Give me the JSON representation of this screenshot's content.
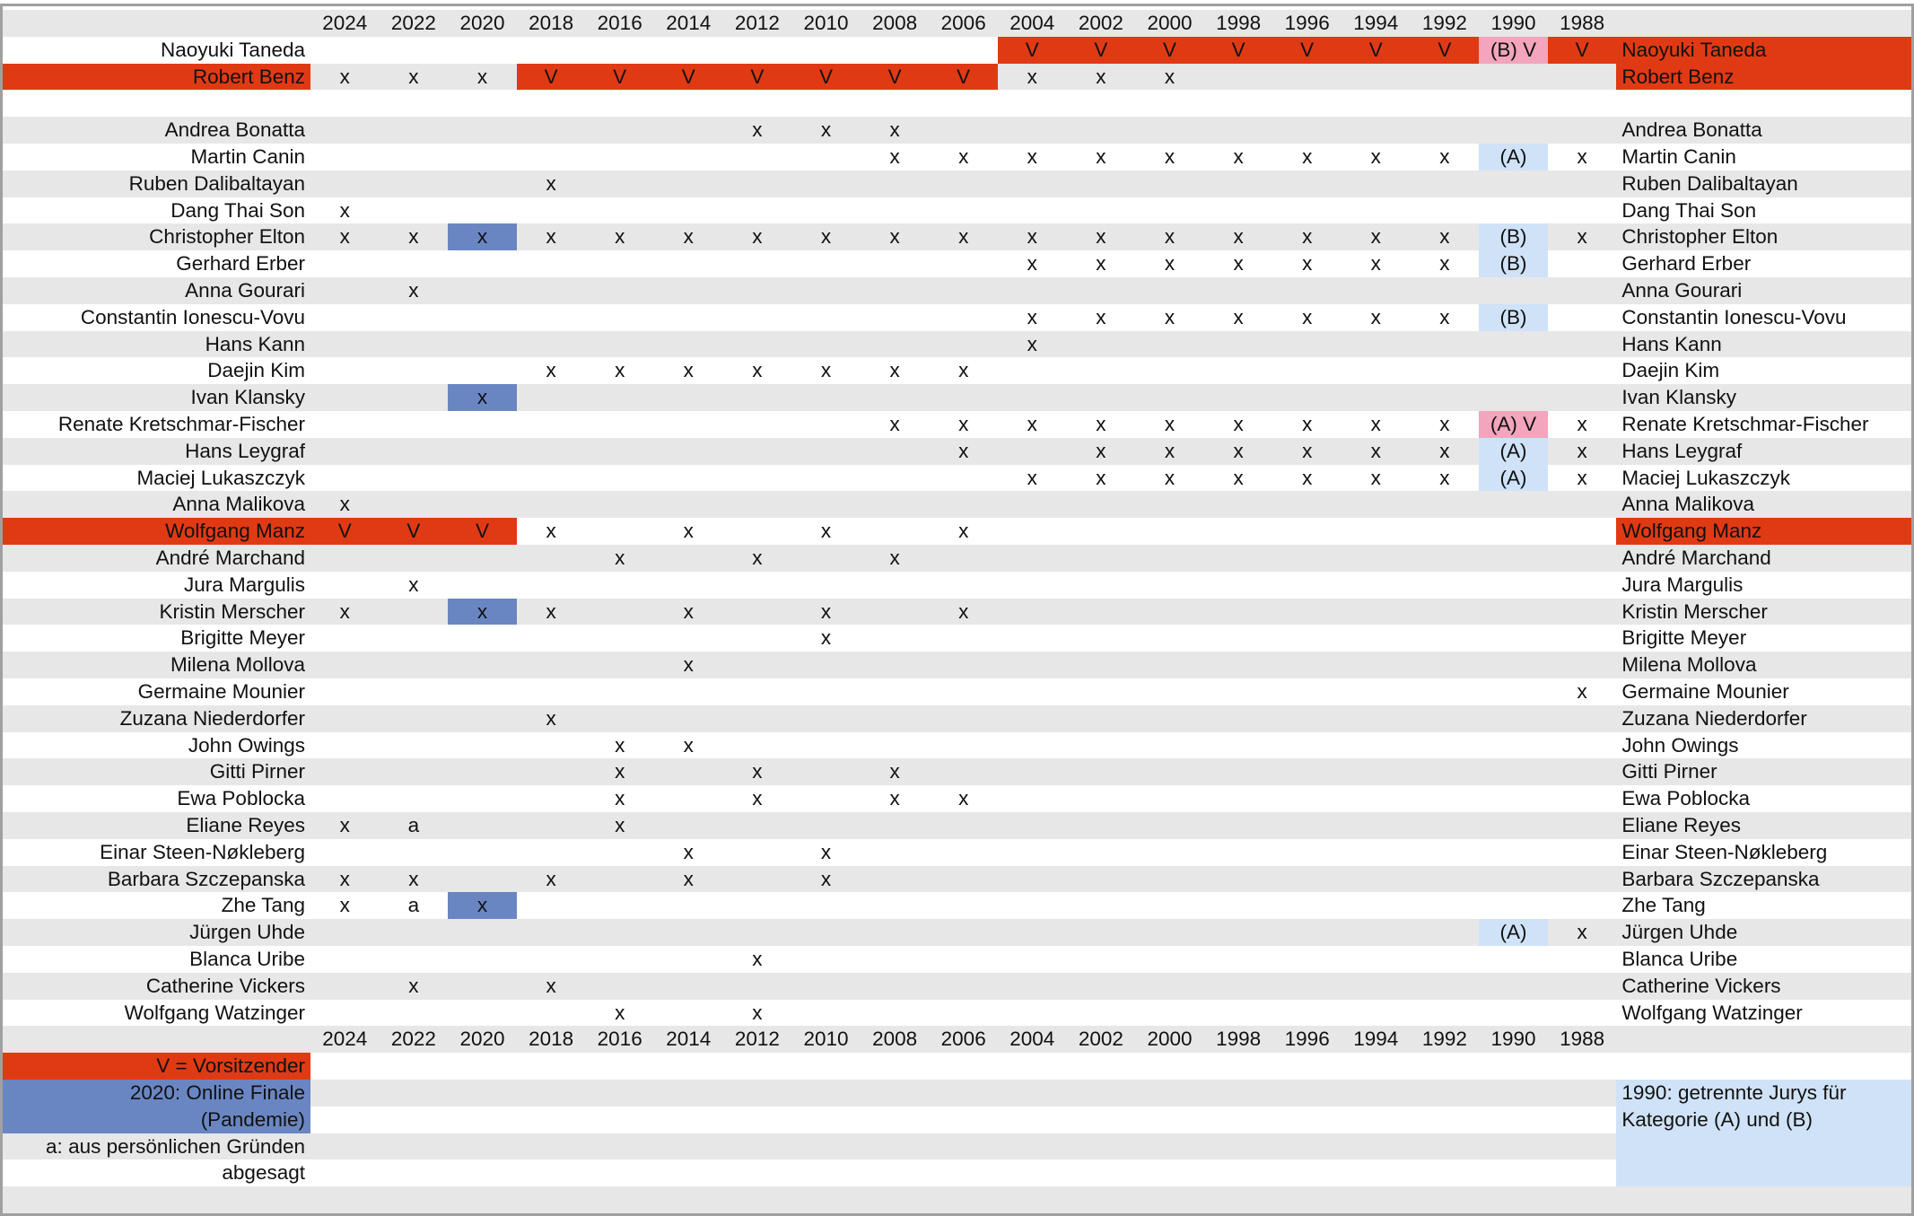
{
  "years": [
    "2024",
    "2022",
    "2020",
    "2018",
    "2016",
    "2014",
    "2012",
    "2010",
    "2008",
    "2006",
    "2004",
    "2002",
    "2000",
    "1998",
    "1996",
    "1994",
    "1992",
    "1990",
    "1988"
  ],
  "chairs": [
    {
      "name": "Naoyuki Taneda",
      "right_name_color": "#e03a14",
      "cells": [
        null,
        null,
        null,
        null,
        null,
        null,
        null,
        null,
        null,
        null,
        "V",
        "V",
        "V",
        "V",
        "V",
        "V",
        "V",
        "(B) V",
        "V"
      ],
      "fills": {
        "10": "#e03a14",
        "11": "#e03a14",
        "12": "#e03a14",
        "13": "#e03a14",
        "14": "#e03a14",
        "15": "#e03a14",
        "16": "#e03a14",
        "17": "#f2a5bd",
        "18": "#e03a14"
      }
    },
    {
      "name": "Robert Benz",
      "name_color": "#e03a14",
      "right_name_color": "#e03a14",
      "cells": [
        "x",
        "x",
        "x",
        "V",
        "V",
        "V",
        "V",
        "V",
        "V",
        "V",
        "x",
        "x",
        "x",
        null,
        null,
        null,
        null,
        null,
        null
      ],
      "fills": {
        "3": "#e03a14",
        "4": "#e03a14",
        "5": "#e03a14",
        "6": "#e03a14",
        "7": "#e03a14",
        "8": "#e03a14",
        "9": "#e03a14"
      }
    }
  ],
  "members": [
    {
      "name": "Andrea Bonatta",
      "cells": [
        null,
        null,
        null,
        null,
        null,
        null,
        "x",
        "x",
        "x",
        null,
        null,
        null,
        null,
        null,
        null,
        null,
        null,
        null,
        null
      ]
    },
    {
      "name": "Martin Canin",
      "cells": [
        null,
        null,
        null,
        null,
        null,
        null,
        null,
        null,
        "x",
        "x",
        "x",
        "x",
        "x",
        "x",
        "x",
        "x",
        "x",
        "(A)",
        "x"
      ],
      "fills": {
        "17": "#cfe2f7"
      }
    },
    {
      "name": "Ruben Dalibaltayan",
      "cells": [
        null,
        null,
        null,
        "x",
        null,
        null,
        null,
        null,
        null,
        null,
        null,
        null,
        null,
        null,
        null,
        null,
        null,
        null,
        null
      ]
    },
    {
      "name": "Dang Thai Son",
      "cells": [
        "x",
        null,
        null,
        null,
        null,
        null,
        null,
        null,
        null,
        null,
        null,
        null,
        null,
        null,
        null,
        null,
        null,
        null,
        null
      ]
    },
    {
      "name": "Christopher Elton",
      "cells": [
        "x",
        "x",
        "x",
        "x",
        "x",
        "x",
        "x",
        "x",
        "x",
        "x",
        "x",
        "x",
        "x",
        "x",
        "x",
        "x",
        "x",
        "(B)",
        "x"
      ],
      "fills": {
        "2": "#6a86c2",
        "17": "#cfe2f7"
      }
    },
    {
      "name": "Gerhard Erber",
      "cells": [
        null,
        null,
        null,
        null,
        null,
        null,
        null,
        null,
        null,
        null,
        "x",
        "x",
        "x",
        "x",
        "x",
        "x",
        "x",
        "(B)",
        null
      ],
      "fills": {
        "17": "#cfe2f7"
      }
    },
    {
      "name": "Anna Gourari",
      "cells": [
        null,
        "x",
        null,
        null,
        null,
        null,
        null,
        null,
        null,
        null,
        null,
        null,
        null,
        null,
        null,
        null,
        null,
        null,
        null
      ]
    },
    {
      "name": "Constantin Ionescu-Vovu",
      "cells": [
        null,
        null,
        null,
        null,
        null,
        null,
        null,
        null,
        null,
        null,
        "x",
        "x",
        "x",
        "x",
        "x",
        "x",
        "x",
        "(B)",
        null
      ],
      "fills": {
        "17": "#cfe2f7"
      }
    },
    {
      "name": "Hans Kann",
      "cells": [
        null,
        null,
        null,
        null,
        null,
        null,
        null,
        null,
        null,
        null,
        "x",
        null,
        null,
        null,
        null,
        null,
        null,
        null,
        null
      ]
    },
    {
      "name": "Daejin Kim",
      "cells": [
        null,
        null,
        null,
        "x",
        "x",
        "x",
        "x",
        "x",
        "x",
        "x",
        null,
        null,
        null,
        null,
        null,
        null,
        null,
        null,
        null
      ]
    },
    {
      "name": "Ivan Klansky",
      "cells": [
        null,
        null,
        "x",
        null,
        null,
        null,
        null,
        null,
        null,
        null,
        null,
        null,
        null,
        null,
        null,
        null,
        null,
        null,
        null
      ],
      "fills": {
        "2": "#6a86c2"
      }
    },
    {
      "name": "Renate Kretschmar-Fischer",
      "cells": [
        null,
        null,
        null,
        null,
        null,
        null,
        null,
        null,
        "x",
        "x",
        "x",
        "x",
        "x",
        "x",
        "x",
        "x",
        "x",
        "(A) V",
        "x"
      ],
      "fills": {
        "17": "#f2a5bd"
      }
    },
    {
      "name": "Hans Leygraf",
      "cells": [
        null,
        null,
        null,
        null,
        null,
        null,
        null,
        null,
        null,
        "x",
        null,
        "x",
        "x",
        "x",
        "x",
        "x",
        "x",
        "(A)",
        "x"
      ],
      "fills": {
        "17": "#cfe2f7"
      }
    },
    {
      "name": "Maciej Lukaszczyk",
      "cells": [
        null,
        null,
        null,
        null,
        null,
        null,
        null,
        null,
        null,
        null,
        "x",
        "x",
        "x",
        "x",
        "x",
        "x",
        "x",
        "(A)",
        "x"
      ],
      "fills": {
        "17": "#cfe2f7"
      }
    },
    {
      "name": "Anna Malikova",
      "cells": [
        "x",
        null,
        null,
        null,
        null,
        null,
        null,
        null,
        null,
        null,
        null,
        null,
        null,
        null,
        null,
        null,
        null,
        null,
        null
      ]
    },
    {
      "name": "Wolfgang Manz",
      "name_color": "#e03a14",
      "right_name_color": "#e03a14",
      "cells": [
        "V",
        "V",
        "V",
        "x",
        null,
        "x",
        null,
        "x",
        null,
        "x",
        null,
        null,
        null,
        null,
        null,
        null,
        null,
        null,
        null
      ],
      "fills": {
        "0": "#e03a14",
        "1": "#e03a14",
        "2": "#e03a14"
      }
    },
    {
      "name": "André Marchand",
      "cells": [
        null,
        null,
        null,
        null,
        "x",
        null,
        "x",
        null,
        "x",
        null,
        null,
        null,
        null,
        null,
        null,
        null,
        null,
        null,
        null
      ]
    },
    {
      "name": "Jura Margulis",
      "cells": [
        null,
        "x",
        null,
        null,
        null,
        null,
        null,
        null,
        null,
        null,
        null,
        null,
        null,
        null,
        null,
        null,
        null,
        null,
        null
      ]
    },
    {
      "name": "Kristin Merscher",
      "cells": [
        "x",
        null,
        "x",
        "x",
        null,
        "x",
        null,
        "x",
        null,
        "x",
        null,
        null,
        null,
        null,
        null,
        null,
        null,
        null,
        null
      ],
      "fills": {
        "2": "#6a86c2"
      }
    },
    {
      "name": "Brigitte Meyer",
      "cells": [
        null,
        null,
        null,
        null,
        null,
        null,
        null,
        "x",
        null,
        null,
        null,
        null,
        null,
        null,
        null,
        null,
        null,
        null,
        null
      ]
    },
    {
      "name": "Milena Mollova",
      "cells": [
        null,
        null,
        null,
        null,
        null,
        "x",
        null,
        null,
        null,
        null,
        null,
        null,
        null,
        null,
        null,
        null,
        null,
        null,
        null
      ]
    },
    {
      "name": "Germaine Mounier",
      "cells": [
        null,
        null,
        null,
        null,
        null,
        null,
        null,
        null,
        null,
        null,
        null,
        null,
        null,
        null,
        null,
        null,
        null,
        null,
        "x"
      ]
    },
    {
      "name": "Zuzana Niederdorfer",
      "cells": [
        null,
        null,
        null,
        "x",
        null,
        null,
        null,
        null,
        null,
        null,
        null,
        null,
        null,
        null,
        null,
        null,
        null,
        null,
        null
      ]
    },
    {
      "name": "John Owings",
      "cells": [
        null,
        null,
        null,
        null,
        "x",
        "x",
        null,
        null,
        null,
        null,
        null,
        null,
        null,
        null,
        null,
        null,
        null,
        null,
        null
      ]
    },
    {
      "name": "Gitti Pirner",
      "cells": [
        null,
        null,
        null,
        null,
        "x",
        null,
        "x",
        null,
        "x",
        null,
        null,
        null,
        null,
        null,
        null,
        null,
        null,
        null,
        null
      ]
    },
    {
      "name": "Ewa Poblocka",
      "cells": [
        null,
        null,
        null,
        null,
        "x",
        null,
        "x",
        null,
        "x",
        "x",
        null,
        null,
        null,
        null,
        null,
        null,
        null,
        null,
        null
      ]
    },
    {
      "name": "Eliane Reyes",
      "cells": [
        "x",
        "a",
        null,
        null,
        "x",
        null,
        null,
        null,
        null,
        null,
        null,
        null,
        null,
        null,
        null,
        null,
        null,
        null,
        null
      ]
    },
    {
      "name": "Einar Steen-Nøkleberg",
      "cells": [
        null,
        null,
        null,
        null,
        null,
        "x",
        null,
        "x",
        null,
        null,
        null,
        null,
        null,
        null,
        null,
        null,
        null,
        null,
        null
      ]
    },
    {
      "name": "Barbara Szczepanska",
      "cells": [
        "x",
        "x",
        null,
        "x",
        null,
        "x",
        null,
        "x",
        null,
        null,
        null,
        null,
        null,
        null,
        null,
        null,
        null,
        null,
        null
      ]
    },
    {
      "name": "Zhe Tang",
      "cells": [
        "x",
        "a",
        "x",
        null,
        null,
        null,
        null,
        null,
        null,
        null,
        null,
        null,
        null,
        null,
        null,
        null,
        null,
        null,
        null
      ],
      "fills": {
        "2": "#6a86c2"
      }
    },
    {
      "name": "Jürgen Uhde",
      "cells": [
        null,
        null,
        null,
        null,
        null,
        null,
        null,
        null,
        null,
        null,
        null,
        null,
        null,
        null,
        null,
        null,
        null,
        "(A)",
        "x"
      ],
      "fills": {
        "17": "#cfe2f7"
      }
    },
    {
      "name": "Blanca Uribe",
      "cells": [
        null,
        null,
        null,
        null,
        null,
        null,
        "x",
        null,
        null,
        null,
        null,
        null,
        null,
        null,
        null,
        null,
        null,
        null,
        null
      ]
    },
    {
      "name": "Catherine Vickers",
      "cells": [
        null,
        "x",
        null,
        "x",
        null,
        null,
        null,
        null,
        null,
        null,
        null,
        null,
        null,
        null,
        null,
        null,
        null,
        null,
        null
      ]
    },
    {
      "name": "Wolfgang Watzinger",
      "cells": [
        null,
        null,
        null,
        null,
        "x",
        null,
        "x",
        null,
        null,
        null,
        null,
        null,
        null,
        null,
        null,
        null,
        null,
        null,
        null
      ]
    }
  ],
  "legend": {
    "chair": {
      "text": "V = Vorsitzender",
      "color": "#e03a14"
    },
    "online": {
      "text": "2020: Online Finale (Pandemie)",
      "color": "#6a86c2"
    },
    "absent": {
      "text": "a: aus persönlichen Gründen abgesagt"
    },
    "split": {
      "text": "1990: getrennte Jurys für Kategorie (A) und (B)",
      "color": "#cfe2f7"
    }
  }
}
